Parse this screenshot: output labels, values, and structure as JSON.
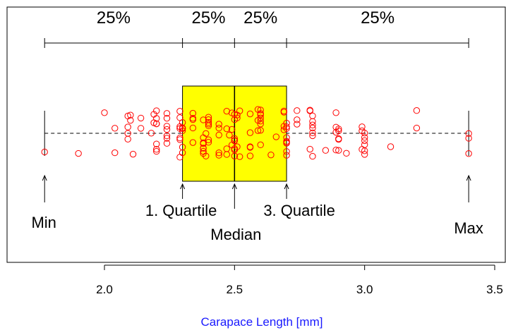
{
  "chart_data": {
    "type": "scatter",
    "xlabel": "Carapace Length [mm]",
    "xlim": [
      1.65,
      3.51
    ],
    "x_ticks": [
      "2.0",
      "2.5",
      "3.0",
      "3.5"
    ],
    "x_tick_values": [
      2.0,
      2.5,
      3.0,
      3.5
    ],
    "summary": {
      "min": 1.77,
      "q1": 2.3,
      "median": 2.5,
      "q3": 2.7,
      "max": 3.4
    },
    "quartile_labels": [
      "25%",
      "25%",
      "25%",
      "25%"
    ],
    "annotations": {
      "min": "Min",
      "q1": "1. Quartile",
      "median": "Median",
      "q3": "3. Quartile",
      "max": "Max"
    },
    "colors": {
      "points": "#ff0000",
      "box_fill": "#ffff00",
      "xlabel": "#1a1aff",
      "axis": "#000000"
    },
    "points_x": [
      1.77,
      1.9,
      2.0,
      2.04,
      2.04,
      2.09,
      2.09,
      2.09,
      2.09,
      2.1,
      2.1,
      2.11,
      2.14,
      2.14,
      2.18,
      2.19,
      2.19,
      2.2,
      2.2,
      2.2,
      2.2,
      2.2,
      2.2,
      2.2,
      2.24,
      2.24,
      2.24,
      2.24,
      2.24,
      2.24,
      2.24,
      2.29,
      2.29,
      2.29,
      2.29,
      2.29,
      2.29,
      2.29,
      2.3,
      2.3,
      2.3,
      2.3,
      2.3,
      2.3,
      2.3,
      2.34,
      2.34,
      2.34,
      2.34,
      2.34,
      2.38,
      2.38,
      2.38,
      2.38,
      2.38,
      2.38,
      2.38,
      2.38,
      2.39,
      2.39,
      2.4,
      2.4,
      2.4,
      2.4,
      2.4,
      2.4,
      2.4,
      2.44,
      2.44,
      2.44,
      2.44,
      2.44,
      2.47,
      2.47,
      2.47,
      2.47,
      2.48,
      2.49,
      2.49,
      2.49,
      2.5,
      2.5,
      2.5,
      2.5,
      2.5,
      2.5,
      2.5,
      2.5,
      2.51,
      2.51,
      2.51,
      2.52,
      2.52,
      2.56,
      2.56,
      2.56,
      2.56,
      2.56,
      2.59,
      2.59,
      2.59,
      2.6,
      2.6,
      2.6,
      2.6,
      2.6,
      2.6,
      2.6,
      2.6,
      2.64,
      2.66,
      2.69,
      2.69,
      2.69,
      2.69,
      2.7,
      2.7,
      2.7,
      2.7,
      2.7,
      2.7,
      2.7,
      2.7,
      2.7,
      2.74,
      2.74,
      2.74,
      2.79,
      2.79,
      2.79,
      2.8,
      2.8,
      2.8,
      2.8,
      2.8,
      2.8,
      2.8,
      2.85,
      2.89,
      2.89,
      2.89,
      2.89,
      2.9,
      2.9,
      2.9,
      2.9,
      2.9,
      2.93,
      2.99,
      2.99,
      2.99,
      3.0,
      3.0,
      3.0,
      3.0,
      3.0,
      3.0,
      3.1,
      3.2,
      3.2,
      3.4,
      3.4,
      3.4
    ]
  }
}
